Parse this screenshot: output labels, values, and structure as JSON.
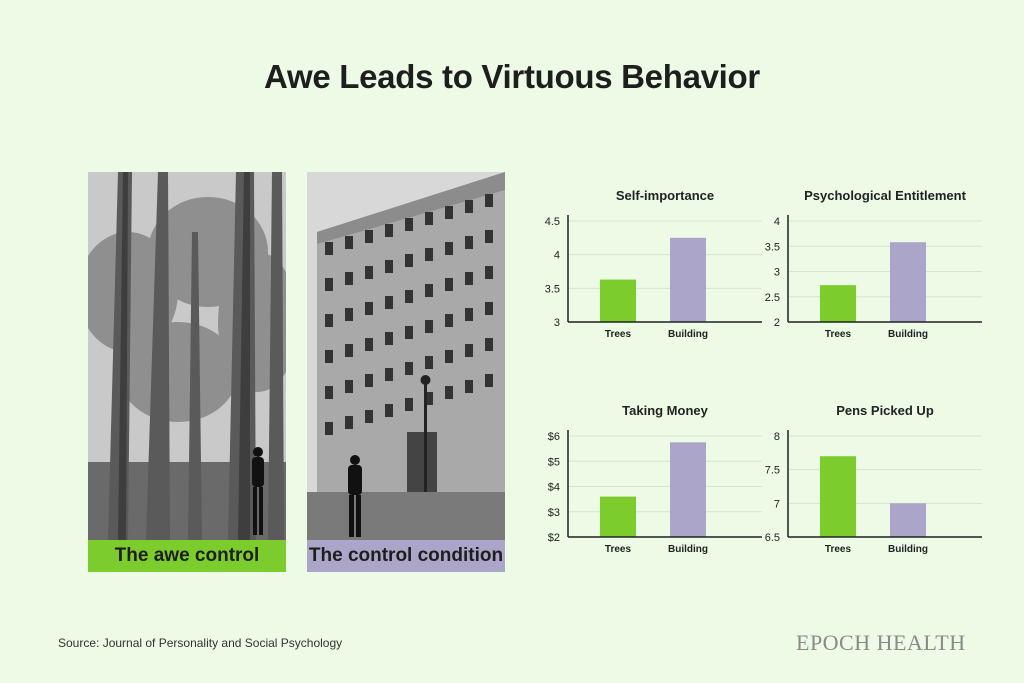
{
  "title": "Awe Leads to Virtuous Behavior",
  "photos": [
    {
      "caption": "The awe control",
      "color": "#7dcc2e"
    },
    {
      "caption": "The control condition",
      "color": "#aaa5c9"
    }
  ],
  "source": "Source: Journal of Personality and Social Psychology",
  "brand": "EPOCH HEALTH",
  "colors": {
    "trees": "#7dcc2e",
    "building": "#aaa5c9"
  },
  "chart_data": [
    {
      "type": "bar",
      "title": "Self-importance",
      "categories": [
        "Trees",
        "Building"
      ],
      "values": [
        3.63,
        4.25
      ],
      "ylim": [
        3,
        4.5
      ],
      "yticks": [
        3,
        3.5,
        4,
        4.5
      ],
      "tick_labels": [
        "3",
        "3.5",
        "4",
        "4.5"
      ]
    },
    {
      "type": "bar",
      "title": "Psychological Entitlement",
      "categories": [
        "Trees",
        "Building"
      ],
      "values": [
        2.73,
        3.58
      ],
      "ylim": [
        2,
        4
      ],
      "yticks": [
        2,
        2.5,
        3,
        3.5,
        4
      ],
      "tick_labels": [
        "2",
        "2.5",
        "3",
        "3.5",
        "4"
      ]
    },
    {
      "type": "bar",
      "title": "Taking Money",
      "categories": [
        "Trees",
        "Building"
      ],
      "values": [
        3.6,
        5.75
      ],
      "ylim": [
        2,
        6
      ],
      "yticks": [
        2,
        3,
        4,
        5,
        6
      ],
      "tick_labels": [
        "$2",
        "$3",
        "$4",
        "$5",
        "$6"
      ]
    },
    {
      "type": "bar",
      "title": "Pens Picked Up",
      "categories": [
        "Trees",
        "Building"
      ],
      "values": [
        7.7,
        7.0
      ],
      "ylim": [
        6.5,
        8
      ],
      "yticks": [
        6.5,
        7,
        7.5,
        8
      ],
      "tick_labels": [
        "6.5",
        "7",
        "7.5",
        "8"
      ]
    }
  ]
}
